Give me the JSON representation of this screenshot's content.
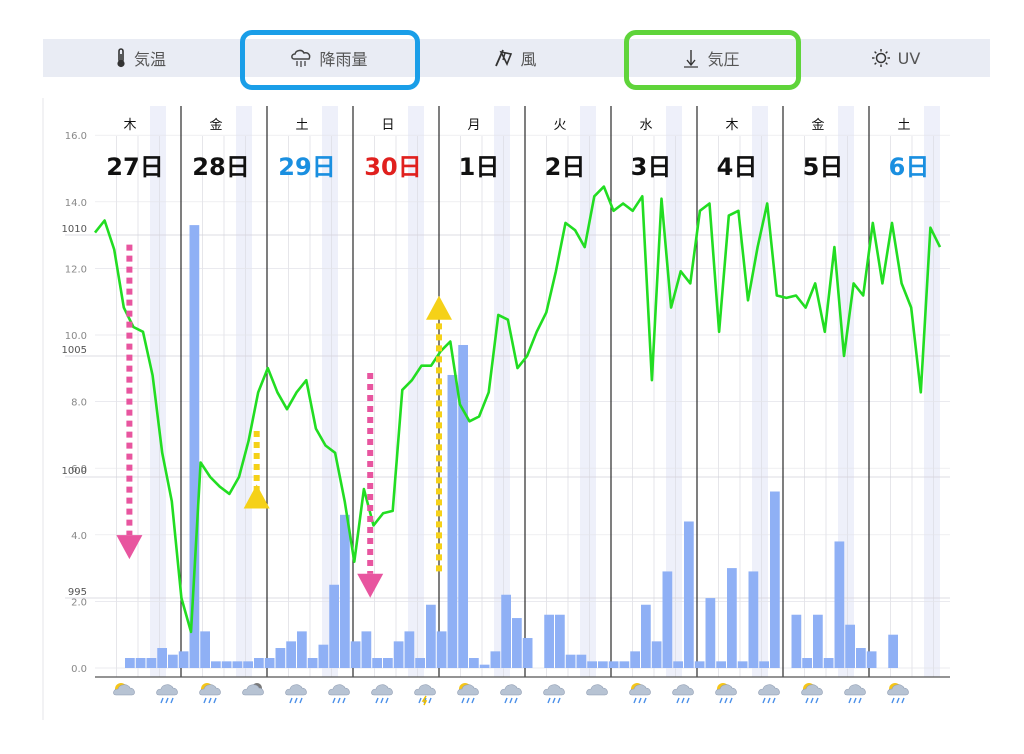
{
  "tabs": [
    {
      "id": "temp",
      "label": "気温",
      "icon": "thermometer-icon"
    },
    {
      "id": "rain",
      "label": "降雨量",
      "icon": "rain-cloud-icon",
      "highlight": "#1a9ee8"
    },
    {
      "id": "wind",
      "label": "風",
      "icon": "windsock-icon"
    },
    {
      "id": "pressure",
      "label": "気圧",
      "icon": "pressure-arrow-icon",
      "highlight": "#5fd43a"
    },
    {
      "id": "uv",
      "label": "UV",
      "icon": "sun-icon"
    }
  ],
  "days": [
    {
      "weekday": "木",
      "date": "27日",
      "color": "#111111"
    },
    {
      "weekday": "金",
      "date": "28日",
      "color": "#111111"
    },
    {
      "weekday": "土",
      "date": "29日",
      "color": "#1a8fe0"
    },
    {
      "weekday": "日",
      "date": "30日",
      "color": "#e0201e"
    },
    {
      "weekday": "月",
      "date": "1日",
      "color": "#111111"
    },
    {
      "weekday": "火",
      "date": "2日",
      "color": "#111111"
    },
    {
      "weekday": "水",
      "date": "3日",
      "color": "#111111"
    },
    {
      "weekday": "木",
      "date": "4日",
      "color": "#111111"
    },
    {
      "weekday": "金",
      "date": "5日",
      "color": "#111111"
    },
    {
      "weekday": "土",
      "date": "6日",
      "color": "#1a8fe0"
    }
  ],
  "weather_icons": [
    "sun-cloud",
    "rain",
    "sun-rain",
    "cloud-moon",
    "rain",
    "rain",
    "rain",
    "thunder-rain",
    "sun-rain",
    "rain",
    "rain",
    "cloud",
    "sun-rain",
    "rain",
    "sun-rain",
    "rain",
    "sun-rain",
    "rain",
    "sun-rain"
  ],
  "chart_data": {
    "type": "bar+line",
    "rain_axis": {
      "ticks": [
        0.0,
        2.0,
        4.0,
        6.0,
        8.0,
        10.0,
        12.0,
        14.0,
        16.0
      ],
      "labels": [
        "0.0",
        "2.0",
        "4.0",
        "6.0",
        "8.0",
        "10.0",
        "12.0",
        "14.0",
        "16.0"
      ],
      "range": [
        0,
        16
      ]
    },
    "pressure_axis": {
      "ticks": [
        995,
        1000,
        1005,
        1010
      ],
      "labels": [
        "995",
        "1000",
        "1005",
        "1010"
      ],
      "range": [
        992,
        1015
      ]
    },
    "rain_bar_color": "#8fb0f5",
    "pressure_line_color": "#22dd22",
    "rain_values": [
      0.3,
      0.3,
      0.3,
      0.6,
      0.4,
      0.5,
      13.3,
      1.1,
      0.2,
      0.2,
      0.2,
      0.2,
      0.3,
      0.3,
      0.6,
      0.8,
      1.1,
      0.3,
      0.7,
      2.5,
      4.6,
      0.8,
      1.1,
      0.3,
      0.3,
      0.8,
      1.1,
      0.3,
      1.9,
      1.1,
      8.8,
      9.7,
      0.3,
      0.1,
      0.5,
      2.2,
      1.5,
      0.9,
      0,
      1.6,
      1.6,
      0.4,
      0.4,
      0.2,
      0.2,
      0.2,
      0.2,
      0.5,
      1.9,
      0.8,
      2.9,
      0.2,
      4.4,
      0.2,
      2.1,
      0.2,
      3.0,
      0.2,
      2.9,
      0.2,
      5.3,
      0,
      1.6,
      0.3,
      1.6,
      0.3,
      3.8,
      1.3,
      0.6,
      0.5,
      0,
      1.0
    ],
    "pressure_values": [
      1010.1,
      1010.6,
      1009.4,
      1007.0,
      1006.2,
      1006.0,
      1004.2,
      1001.0,
      999.0,
      995.0,
      993.6,
      1000.6,
      1000.0,
      999.6,
      999.3,
      1000.0,
      1001.5,
      1003.5,
      1004.5,
      1003.5,
      1002.8,
      1003.5,
      1004.0,
      1002.0,
      1001.3,
      1001.0,
      999.0,
      996.5,
      999.5,
      998.0,
      998.5,
      998.6,
      1003.6,
      1004.0,
      1004.6,
      1004.6,
      1005.2,
      1005.6,
      1003.0,
      1002.3,
      1002.5,
      1003.5,
      1006.7,
      1006.5,
      1004.5,
      1005.0,
      1006.0,
      1006.8,
      1008.5,
      1010.5,
      1010.2,
      1009.5,
      1011.6,
      1012.0,
      1011.0,
      1011.3,
      1011.0,
      1011.6,
      1004.0,
      1011.5,
      1007.0,
      1008.5,
      1008.0,
      1011.0,
      1011.3,
      1006.0,
      1010.8,
      1011.0,
      1007.3,
      1009.5,
      1011.3,
      1007.5,
      1007.4,
      1007.5,
      1007.0,
      1008.0,
      1006.0,
      1009.5,
      1005.0,
      1008.0,
      1007.5,
      1010.5,
      1008.0,
      1010.5,
      1008.0,
      1007.0,
      1003.5,
      1010.3,
      1009.5
    ],
    "arrows": [
      {
        "type": "down",
        "color": "#e8559f",
        "day_pos": 0.4,
        "from": 1009.6,
        "to": 997.6
      },
      {
        "type": "up",
        "color": "#f5d118",
        "day_pos": 1.88,
        "from": 1001.9,
        "to": 998.7
      },
      {
        "type": "down",
        "color": "#e8559f",
        "day_pos": 3.2,
        "from": 1004.3,
        "to": 996.0
      },
      {
        "type": "up",
        "color": "#f5d118",
        "day_pos": 4.0,
        "from": 996.1,
        "to": 1006.5
      }
    ]
  }
}
